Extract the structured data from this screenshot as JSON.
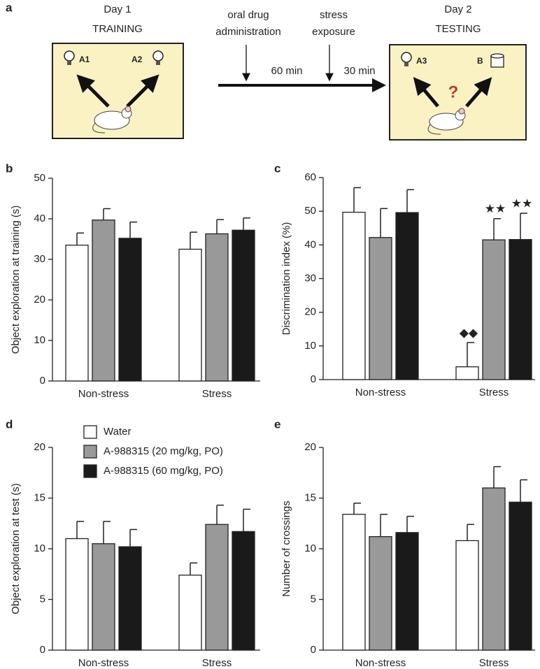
{
  "diagram": {
    "panel_label": "a",
    "day1": [
      "Day 1",
      "TRAINING"
    ],
    "day1_objects": [
      "A1",
      "A2"
    ],
    "day2": [
      "Day 2",
      "TESTING"
    ],
    "day2_objects": [
      "A3",
      "B"
    ],
    "novelty_mark": "?",
    "events": [
      [
        "oral drug",
        "administration"
      ],
      [
        "stress",
        "exposure"
      ]
    ],
    "intervals": [
      "60 min",
      "30 min"
    ]
  },
  "chart_data": [
    {
      "type": "bar",
      "panel_label": "b",
      "y_label": "Object exploration at training (s)",
      "categories": [
        "Non-stress",
        "Stress"
      ],
      "series": [
        {
          "color": "#ffffff",
          "values": [
            33.5,
            32.5
          ],
          "errors": [
            3.0,
            4.2
          ]
        },
        {
          "color": "#999999",
          "values": [
            39.7,
            36.3
          ],
          "errors": [
            2.8,
            3.5
          ]
        },
        {
          "color": "#1a1a1a",
          "values": [
            35.2,
            37.2
          ],
          "errors": [
            4.0,
            3.0
          ]
        }
      ],
      "ylim": [
        0,
        50
      ],
      "yticks": [
        0,
        10,
        20,
        30,
        40,
        50
      ]
    },
    {
      "type": "bar",
      "panel_label": "c",
      "y_label": "Discrimination index (%)",
      "categories": [
        "Non-stress",
        "Stress"
      ],
      "series": [
        {
          "color": "#ffffff",
          "values": [
            49.7,
            3.8
          ],
          "errors": [
            7.3,
            7.2
          ],
          "annotations": [
            null,
            "◆◆"
          ]
        },
        {
          "color": "#999999",
          "values": [
            42.2,
            41.5
          ],
          "errors": [
            8.6,
            6.3
          ],
          "annotations": [
            null,
            "★★"
          ]
        },
        {
          "color": "#1a1a1a",
          "values": [
            49.6,
            41.6
          ],
          "errors": [
            6.8,
            7.8
          ],
          "annotations": [
            null,
            "★★"
          ]
        }
      ],
      "ylim": [
        0,
        60
      ],
      "yticks": [
        0,
        10,
        20,
        30,
        40,
        50,
        60
      ]
    },
    {
      "type": "bar",
      "panel_label": "d",
      "y_label": "Object exploration at test (s)",
      "categories": [
        "Non-stress",
        "Stress"
      ],
      "legend": "top-left",
      "series": [
        {
          "name": "Water",
          "color": "#ffffff",
          "values": [
            11.0,
            7.4
          ],
          "errors": [
            1.7,
            1.2
          ]
        },
        {
          "name": "A-988315 (20 mg/kg, PO)",
          "color": "#999999",
          "values": [
            10.5,
            12.4
          ],
          "errors": [
            2.2,
            1.9
          ]
        },
        {
          "name": "A-988315 (60 mg/kg, PO)",
          "color": "#1a1a1a",
          "values": [
            10.2,
            11.7
          ],
          "errors": [
            1.7,
            2.2
          ]
        }
      ],
      "ylim": [
        0,
        20
      ],
      "yticks": [
        0,
        5,
        10,
        15,
        20
      ]
    },
    {
      "type": "bar",
      "panel_label": "e",
      "y_label": "Number of crossings",
      "categories": [
        "Non-stress",
        "Stress"
      ],
      "series": [
        {
          "color": "#ffffff",
          "values": [
            13.4,
            10.8
          ],
          "errors": [
            1.1,
            1.6
          ]
        },
        {
          "color": "#999999",
          "values": [
            11.2,
            16.0
          ],
          "errors": [
            2.2,
            2.1
          ]
        },
        {
          "color": "#1a1a1a",
          "values": [
            11.6,
            14.6
          ],
          "errors": [
            1.6,
            2.2
          ]
        }
      ],
      "ylim": [
        0,
        20
      ],
      "yticks": [
        0,
        5,
        10,
        15,
        20
      ]
    }
  ]
}
